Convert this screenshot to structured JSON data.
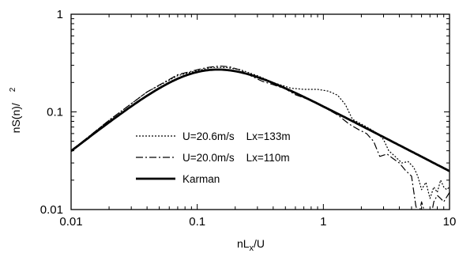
{
  "chart_data": {
    "type": "line",
    "xscale": "log",
    "yscale": "log",
    "xlim": [
      0.01,
      10
    ],
    "ylim": [
      0.01,
      1
    ],
    "grid": false,
    "legend_position": "lower-left",
    "xlabel": {
      "main": "nL",
      "sub": "x",
      "tail": "/U"
    },
    "ylabel": {
      "main": "nS(n)/",
      "sup": "2"
    },
    "x_ticks": [
      {
        "value": 0.01,
        "label": "0.01"
      },
      {
        "value": 0.1,
        "label": "0.1"
      },
      {
        "value": 1,
        "label": "1"
      },
      {
        "value": 10,
        "label": "10"
      }
    ],
    "y_ticks": [
      {
        "value": 0.01,
        "label": "0.01"
      },
      {
        "value": 0.1,
        "label": "0.1"
      },
      {
        "value": 1,
        "label": "1"
      }
    ],
    "series": [
      {
        "name": "U=20.6m/s    Lx=133m",
        "style": "dotted",
        "color": "#000000",
        "x": [
          0.01,
          0.02,
          0.04,
          0.07,
          0.1,
          0.13,
          0.17,
          0.22,
          0.3,
          0.4,
          0.55,
          0.7,
          0.9,
          1.1,
          1.3,
          1.5,
          1.7,
          2.0,
          2.3,
          2.7,
          3.0,
          3.3,
          3.7,
          4.2,
          4.7,
          5.2,
          5.6,
          6.0,
          6.5,
          7.0,
          7.5,
          8.0,
          8.5,
          9.0,
          9.5,
          10
        ],
        "y": [
          0.04,
          0.082,
          0.16,
          0.235,
          0.265,
          0.285,
          0.285,
          0.27,
          0.235,
          0.2,
          0.175,
          0.17,
          0.17,
          0.163,
          0.148,
          0.118,
          0.084,
          0.075,
          0.068,
          0.06,
          0.052,
          0.04,
          0.035,
          0.03,
          0.031,
          0.027,
          0.022,
          0.016,
          0.019,
          0.013,
          0.017,
          0.015,
          0.02,
          0.017,
          0.016,
          0.017
        ]
      },
      {
        "name": "U=20.0m/s    Lx=110m",
        "style": "dashdot",
        "color": "#000000",
        "x": [
          0.01,
          0.02,
          0.04,
          0.07,
          0.1,
          0.12,
          0.15,
          0.18,
          0.22,
          0.27,
          0.33,
          0.4,
          0.5,
          0.6,
          0.75,
          0.9,
          1.1,
          1.3,
          1.6,
          1.9,
          2.2,
          2.5,
          2.8,
          3.2,
          3.6,
          4.0,
          4.5,
          5.0,
          5.4,
          5.7,
          6.0,
          6.5,
          7.0,
          7.5,
          8.0,
          8.5,
          9.0,
          10
        ],
        "y": [
          0.04,
          0.082,
          0.16,
          0.24,
          0.27,
          0.285,
          0.295,
          0.29,
          0.268,
          0.232,
          0.205,
          0.19,
          0.172,
          0.15,
          0.135,
          0.12,
          0.105,
          0.093,
          0.075,
          0.066,
          0.06,
          0.05,
          0.035,
          0.037,
          0.033,
          0.03,
          0.025,
          0.022,
          0.011,
          0.0085,
          0.012,
          0.0085,
          0.0075,
          0.012,
          0.014,
          0.013,
          0.012,
          0.015
        ]
      },
      {
        "name": "Karman",
        "style": "solid",
        "color": "#000000",
        "model": "karman",
        "x": [
          0.01,
          0.02,
          0.04,
          0.07,
          0.1,
          0.15,
          0.2,
          0.3,
          0.5,
          0.7,
          1,
          1.5,
          2,
          3,
          5,
          7,
          10
        ],
        "y": [
          0.04,
          0.077,
          0.141,
          0.207,
          0.243,
          0.268,
          0.265,
          0.24,
          0.188,
          0.155,
          0.124,
          0.094,
          0.077,
          0.058,
          0.041,
          0.032,
          0.025
        ]
      }
    ]
  }
}
